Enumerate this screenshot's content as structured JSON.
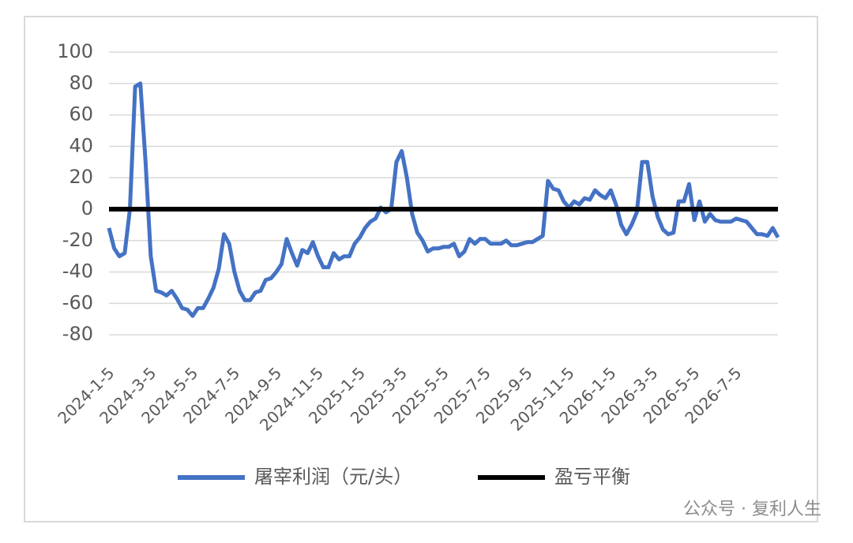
{
  "chart_data": {
    "type": "line",
    "categories": [
      "2024-1-5",
      null,
      null,
      null,
      null,
      null,
      null,
      null,
      "2024-3-5",
      null,
      null,
      null,
      null,
      null,
      null,
      null,
      "2024-5-5",
      null,
      null,
      null,
      null,
      null,
      null,
      null,
      "2024-7-5",
      null,
      null,
      null,
      null,
      null,
      null,
      null,
      "2024-9-5",
      null,
      null,
      null,
      null,
      null,
      null,
      null,
      "2024-11-5",
      null,
      null,
      null,
      null,
      null,
      null,
      null,
      "2025-1-5",
      null,
      null,
      null,
      null,
      null,
      null,
      null,
      "2025-3-5",
      null,
      null,
      null,
      null,
      null,
      null,
      null,
      "2025-5-5",
      null,
      null,
      null,
      null,
      null,
      null,
      null,
      "2025-7-5",
      null,
      null,
      null,
      null,
      null,
      null,
      null,
      "2025-9-5",
      null,
      null,
      null,
      null,
      null,
      null,
      null,
      "2025-11-5",
      null,
      null,
      null,
      null,
      null,
      null,
      null,
      "2026-1-5",
      null,
      null,
      null,
      null,
      null,
      null,
      null,
      "2026-3-5",
      null,
      null,
      null,
      null,
      null,
      null,
      null,
      "2026-5-5",
      null,
      null,
      null,
      null,
      null,
      null,
      null,
      "2026-7-5",
      null,
      null,
      null,
      null,
      null,
      null,
      null,
      null
    ],
    "series": [
      {
        "name": "屠宰利润（元/头）",
        "color": "#4472c4",
        "values": [
          -12,
          -25,
          -30,
          -28,
          0,
          78,
          80,
          30,
          -30,
          -52,
          -53,
          -55,
          -52,
          -57,
          -63,
          -64,
          -68,
          -63,
          -63,
          -57,
          -50,
          -38,
          -16,
          -22,
          -40,
          -52,
          -58,
          -58,
          -53,
          -52,
          -45,
          -44,
          -40,
          -35,
          -19,
          -28,
          -36,
          -26,
          -28,
          -21,
          -30,
          -37,
          -37,
          -28,
          -32,
          -30,
          -30,
          -22,
          -18,
          -12,
          -8,
          -6,
          1,
          -2,
          0,
          30,
          37,
          20,
          -3,
          -15,
          -20,
          -27,
          -25,
          -25,
          -24,
          -24,
          -22,
          -30,
          -27,
          -19,
          -22,
          -19,
          -19,
          -22,
          -22,
          -22,
          -20,
          -23,
          -23,
          -22,
          -21,
          -21,
          -19,
          -17,
          18,
          13,
          12,
          5,
          1,
          5,
          3,
          7,
          6,
          12,
          9,
          7,
          12,
          3,
          -10,
          -16,
          -10,
          -2,
          30,
          30,
          8,
          -5,
          -13,
          -16,
          -15,
          5,
          5,
          16,
          -7,
          5,
          -8,
          -3,
          -7,
          -8,
          -8,
          -8,
          -6,
          -7,
          -8,
          -12,
          -16,
          -16,
          -17,
          -12,
          -18
        ]
      }
    ],
    "reference_line": {
      "name": "盈亏平衡",
      "value": 0,
      "color": "#000000"
    },
    "ylim": [
      -90,
      105
    ],
    "yticks": [
      -80,
      -60,
      -40,
      -20,
      0,
      20,
      40,
      60,
      80,
      100
    ],
    "grid": true,
    "legend": "bottom",
    "watermark": "公众号 · 复利人生"
  }
}
